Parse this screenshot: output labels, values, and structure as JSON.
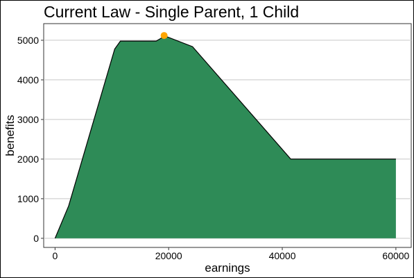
{
  "chart_data": {
    "type": "area",
    "title": "Current Law - Single Parent, 1 Child",
    "xlabel": "earnings",
    "ylabel": "benefits",
    "xlim": [
      -2000,
      62700
    ],
    "ylim": [
      -230,
      5420
    ],
    "xticks": [
      {
        "value": 0,
        "label": "0"
      },
      {
        "value": 20000,
        "label": "20000"
      },
      {
        "value": 40000,
        "label": "40000"
      },
      {
        "value": 60000,
        "label": "60000"
      }
    ],
    "yticks": [
      {
        "value": 0,
        "label": "0"
      },
      {
        "value": 1000,
        "label": "1000"
      },
      {
        "value": 2000,
        "label": "2000"
      },
      {
        "value": 3000,
        "label": "3000"
      },
      {
        "value": 4000,
        "label": "4000"
      },
      {
        "value": 5000,
        "label": "5000"
      }
    ],
    "grid": true,
    "series": [
      {
        "fill_color": "#2e8b57",
        "line_color": "#000000",
        "points": [
          {
            "x": 0,
            "y": 0
          },
          {
            "x": 2400,
            "y": 820
          },
          {
            "x": 10500,
            "y": 4780
          },
          {
            "x": 11500,
            "y": 4980
          },
          {
            "x": 17800,
            "y": 4980
          },
          {
            "x": 19000,
            "y": 5080
          },
          {
            "x": 19500,
            "y": 5100
          },
          {
            "x": 24200,
            "y": 4840
          },
          {
            "x": 41500,
            "y": 2000
          },
          {
            "x": 60000,
            "y": 2000
          }
        ]
      }
    ],
    "highlight_point": {
      "x": 19200,
      "y": 5120,
      "color": "#ffa500"
    }
  }
}
